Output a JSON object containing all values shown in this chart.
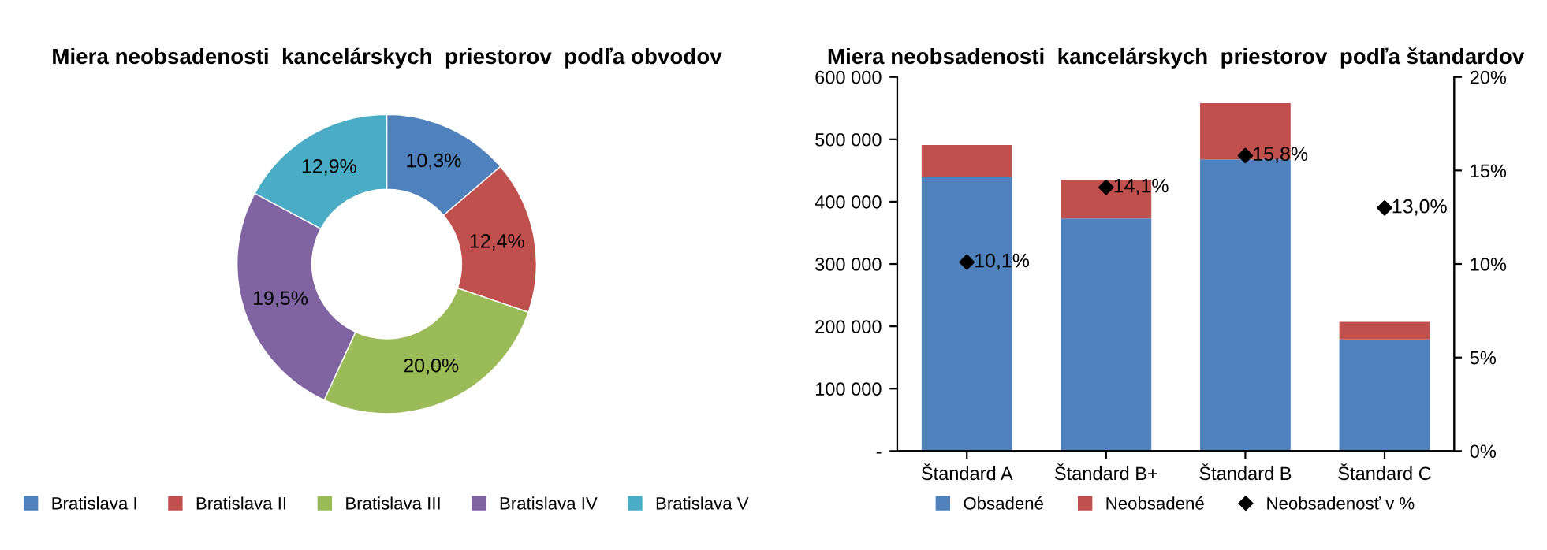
{
  "chart_data": [
    {
      "type": "donut",
      "title": "Miera neobsadenosti  kancelárskych  priestorov  podľa obvodov",
      "categories": [
        "Bratislava I",
        "Bratislava II",
        "Bratislava III",
        "Bratislava IV",
        "Bratislava V"
      ],
      "values": [
        10.3,
        12.4,
        20.0,
        19.5,
        12.9
      ],
      "value_labels": [
        "10,3%",
        "12,4%",
        "20,0%",
        "19,5%",
        "12,9%"
      ],
      "colors": [
        "#4f81bd",
        "#c0504d",
        "#9bbb59",
        "#8064a2",
        "#4bacc6"
      ],
      "legend": "bottom"
    },
    {
      "type": "bar",
      "title": "Miera neobsadenosti  kancelárskych  priestorov  podľa štandardov",
      "categories": [
        "Štandard A",
        "Štandard B+",
        "Štandard B",
        "Štandard C"
      ],
      "stacked": true,
      "legend": "bottom",
      "series": [
        {
          "name": "Obsadené",
          "color": "#4f81bd",
          "values": [
            440000,
            373000,
            468000,
            179000
          ]
        },
        {
          "name": "Neobsadené",
          "color": "#c0504d",
          "values": [
            51000,
            62000,
            90000,
            28000
          ]
        },
        {
          "name": "Neobsadenosť v %",
          "type": "scatter",
          "axis": "y2",
          "color": "#000000",
          "marker": "diamond",
          "values": [
            10.1,
            14.1,
            15.8,
            13.0
          ],
          "value_labels": [
            "10,1%",
            "14,1%",
            "15,8%",
            "13,0%"
          ]
        }
      ],
      "ylim": [
        0,
        600000
      ],
      "yticks": [
        {
          "value": 0,
          "label": "-"
        },
        {
          "value": 100000,
          "label": "100 000"
        },
        {
          "value": 200000,
          "label": "200 000"
        },
        {
          "value": 300000,
          "label": "300 000"
        },
        {
          "value": 400000,
          "label": "400 000"
        },
        {
          "value": 500000,
          "label": "500 000"
        },
        {
          "value": 600000,
          "label": "600 000"
        }
      ],
      "y2lim": [
        0,
        20
      ],
      "y2ticks": [
        {
          "value": 0,
          "label": "0%"
        },
        {
          "value": 5,
          "label": "5%"
        },
        {
          "value": 10,
          "label": "10%"
        },
        {
          "value": 15,
          "label": "15%"
        },
        {
          "value": 20,
          "label": "20%"
        }
      ],
      "grid": false
    }
  ]
}
